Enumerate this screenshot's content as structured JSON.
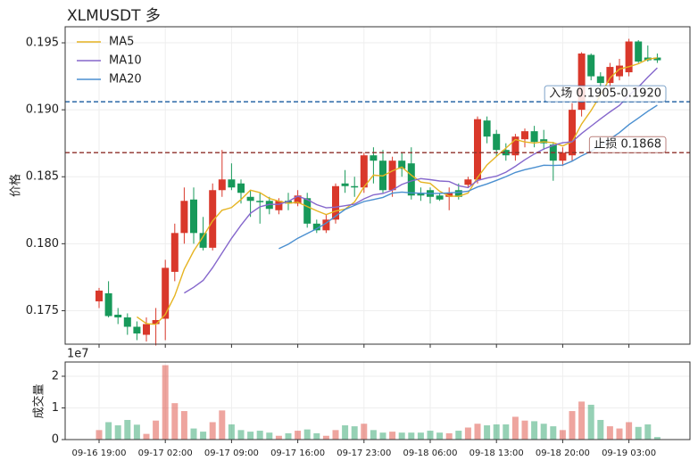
{
  "chart_data": [
    {
      "type": "candlestick",
      "title": "XLMUSDT 多",
      "ylabel": "价格",
      "x": [
        "09-16 19:00",
        null,
        null,
        null,
        null,
        null,
        null,
        "09-17 02:00",
        null,
        null,
        null,
        null,
        null,
        null,
        "09-17 09:00",
        null,
        null,
        null,
        null,
        null,
        null,
        "09-17 16:00",
        null,
        null,
        null,
        null,
        null,
        null,
        "09-17 23:00",
        null,
        null,
        null,
        null,
        null,
        null,
        "09-18 06:00",
        null,
        null,
        null,
        null,
        null,
        null,
        "09-18 13:00",
        null,
        null,
        null,
        null,
        null,
        null,
        "09-18 20:00",
        null,
        null,
        null,
        null,
        null,
        null,
        "09-19 03:00",
        null,
        null,
        null
      ],
      "open": [
        0.1757,
        0.1763,
        0.1747,
        0.1745,
        0.1738,
        0.1732,
        0.174,
        0.1744,
        0.1779,
        0.1808,
        0.1833,
        0.1808,
        0.1797,
        0.184,
        0.1848,
        0.1845,
        0.1835,
        0.1832,
        0.1832,
        0.1825,
        0.1832,
        0.183,
        0.1834,
        0.1815,
        0.181,
        0.1818,
        0.1845,
        0.1843,
        0.1842,
        0.1866,
        0.1862,
        0.184,
        0.1862,
        0.186,
        0.1838,
        0.184,
        0.1836,
        0.1835,
        0.184,
        0.1844,
        0.1848,
        0.1892,
        0.1882,
        0.187,
        0.1866,
        0.1878,
        0.1884,
        0.1878,
        0.1874,
        0.1862,
        0.1866,
        0.19,
        0.1941,
        0.1925,
        0.192,
        0.1925,
        0.1928,
        0.1951,
        0.1939,
        0.1939
      ],
      "high": [
        0.1767,
        0.1772,
        0.1752,
        0.1748,
        0.1742,
        0.1745,
        0.1752,
        0.1788,
        0.1815,
        0.1842,
        0.1842,
        0.182,
        0.1845,
        0.187,
        0.186,
        0.1848,
        0.184,
        0.1838,
        0.1835,
        0.1834,
        0.1838,
        0.184,
        0.1838,
        0.1818,
        0.1822,
        0.1845,
        0.1855,
        0.185,
        0.1868,
        0.1872,
        0.187,
        0.1865,
        0.1868,
        0.1872,
        0.1842,
        0.1842,
        0.1838,
        0.1842,
        0.1845,
        0.185,
        0.1895,
        0.1895,
        0.1885,
        0.1875,
        0.1882,
        0.1886,
        0.1888,
        0.1885,
        0.1876,
        0.1872,
        0.1905,
        0.1943,
        0.1942,
        0.1928,
        0.1935,
        0.1938,
        0.1953,
        0.1952,
        0.1948,
        0.1942
      ],
      "low": [
        0.1752,
        0.1745,
        0.174,
        0.1732,
        0.1728,
        0.1727,
        0.1724,
        0.1728,
        0.1772,
        0.18,
        0.18,
        0.1795,
        0.1795,
        0.1835,
        0.184,
        0.183,
        0.182,
        0.1815,
        0.1822,
        0.1822,
        0.1825,
        0.1828,
        0.1812,
        0.1808,
        0.1808,
        0.1815,
        0.1838,
        0.1835,
        0.1838,
        0.1845,
        0.1838,
        0.1835,
        0.185,
        0.1833,
        0.1832,
        0.183,
        0.1832,
        0.1825,
        0.1833,
        0.1842,
        0.1845,
        0.1875,
        0.1865,
        0.1862,
        0.1862,
        0.1872,
        0.1872,
        0.187,
        0.1847,
        0.1858,
        0.1862,
        0.1895,
        0.1922,
        0.1915,
        0.1915,
        0.1922,
        0.1925,
        0.1935,
        0.1936,
        0.1935
      ],
      "close": [
        0.1765,
        0.1746,
        0.1745,
        0.1738,
        0.1733,
        0.174,
        0.1743,
        0.1782,
        0.1808,
        0.1832,
        0.1808,
        0.1797,
        0.184,
        0.1848,
        0.1842,
        0.1838,
        0.1832,
        0.1831,
        0.1826,
        0.1832,
        0.183,
        0.1836,
        0.1815,
        0.181,
        0.1818,
        0.1843,
        0.1843,
        0.1842,
        0.1866,
        0.1862,
        0.184,
        0.1862,
        0.1856,
        0.1836,
        0.1836,
        0.1835,
        0.1833,
        0.1838,
        0.1835,
        0.1848,
        0.1893,
        0.188,
        0.187,
        0.1866,
        0.188,
        0.1884,
        0.1876,
        0.1875,
        0.1862,
        0.1868,
        0.19,
        0.1942,
        0.1925,
        0.192,
        0.1932,
        0.1933,
        0.1951,
        0.1936,
        0.1937,
        0.1937
      ],
      "up_color": "#d9382b",
      "down_color": "#17995a",
      "series": [
        {
          "name": "MA5",
          "color": "#e6b422",
          "values": [
            null,
            null,
            null,
            null,
            0.17454,
            0.17404,
            0.17398,
            0.17472,
            0.17612,
            0.1781,
            0.17946,
            0.18054,
            0.1817,
            0.1825,
            0.1827,
            0.1833,
            0.184,
            0.18382,
            0.18338,
            0.18318,
            0.18302,
            0.1831,
            0.18278,
            0.18246,
            0.18218,
            0.18244,
            0.18258,
            0.18312,
            0.18424,
            0.18512,
            0.18506,
            0.18544,
            0.18572,
            0.18512,
            0.1846,
            0.1845,
            0.18392,
            0.18356,
            0.18354,
            0.18378,
            0.18494,
            0.18588,
            0.18652,
            0.18714,
            0.18778,
            0.1876,
            0.18752,
            0.18762,
            0.18754,
            0.1873,
            0.18762,
            0.18894,
            0.18994,
            0.1911,
            0.19238,
            0.19304,
            0.19322,
            0.19344,
            0.19378,
            0.19388
          ]
        },
        {
          "name": "MA10",
          "color": "#8567cc",
          "values": [
            null,
            null,
            null,
            null,
            null,
            null,
            null,
            null,
            null,
            0.17632,
            0.17675,
            0.17726,
            0.17821,
            0.17931,
            0.1804,
            0.18138,
            0.18227,
            0.18276,
            0.18294,
            0.18294,
            0.18316,
            0.18355,
            0.1833,
            0.18292,
            0.18268,
            0.18273,
            0.18284,
            0.18295,
            0.18335,
            0.18365,
            0.18375,
            0.18401,
            0.18442,
            0.18468,
            0.18486,
            0.18478,
            0.18468,
            0.18464,
            0.18433,
            0.18419,
            0.18472,
            0.1849,
            0.18504,
            0.18534,
            0.18578,
            0.18627,
            0.1867,
            0.18707,
            0.18734,
            0.18754,
            0.18761,
            0.18823,
            0.18878,
            0.18932,
            0.18984,
            0.19033,
            0.19108,
            0.19169,
            0.19244,
            0.19313
          ]
        },
        {
          "name": "MA20",
          "color": "#4a8fd0",
          "values": [
            null,
            null,
            null,
            null,
            null,
            null,
            null,
            null,
            null,
            null,
            null,
            null,
            null,
            null,
            null,
            null,
            null,
            null,
            null,
            0.17963,
            0.17996,
            0.18041,
            0.18076,
            0.18112,
            0.18154,
            0.18206,
            0.18256,
            0.18286,
            0.18315,
            0.1833,
            0.18346,
            0.18378,
            0.18386,
            0.1838,
            0.18377,
            0.18376,
            0.18376,
            0.1838,
            0.18384,
            0.18392,
            0.18424,
            0.18446,
            0.18473,
            0.18501,
            0.18532,
            0.18553,
            0.18569,
            0.18586,
            0.18584,
            0.18587,
            0.18617,
            0.18657,
            0.18691,
            0.18733,
            0.18781,
            0.1883,
            0.18889,
            0.18938,
            0.18989,
            0.19034
          ]
        }
      ],
      "levels": [
        {
          "label": "入场 0.1905-0.1920",
          "value": 0.1906,
          "color": "#2a67a6"
        },
        {
          "label": "止损 0.1868",
          "value": 0.1868,
          "color": "#8e2f2a"
        }
      ],
      "ylim": [
        0.1725,
        0.1962
      ],
      "yticks": [
        0.175,
        {
          "value": 0.18,
          "label": "0.180"
        },
        0.185,
        {
          "value": 0.19,
          "label": "0.190"
        },
        0.195
      ],
      "grid": true,
      "legend": "upper left"
    },
    {
      "type": "bar",
      "ylabel": "成交量",
      "offset_label": "1e7",
      "values": [
        0.3,
        0.55,
        0.45,
        0.62,
        0.47,
        0.18,
        0.6,
        2.35,
        1.15,
        0.9,
        0.35,
        0.25,
        0.55,
        0.92,
        0.48,
        0.3,
        0.25,
        0.28,
        0.22,
        0.12,
        0.2,
        0.28,
        0.32,
        0.2,
        0.12,
        0.3,
        0.45,
        0.42,
        0.5,
        0.3,
        0.22,
        0.25,
        0.22,
        0.22,
        0.22,
        0.28,
        0.22,
        0.2,
        0.28,
        0.38,
        0.5,
        0.45,
        0.48,
        0.48,
        0.72,
        0.6,
        0.58,
        0.5,
        0.42,
        0.3,
        0.9,
        1.2,
        1.1,
        0.62,
        0.42,
        0.35,
        0.55,
        0.4,
        0.48,
        0.08
      ],
      "ylim": [
        0,
        2.45
      ],
      "yticks": [
        0,
        1,
        2
      ],
      "grid": true
    }
  ]
}
